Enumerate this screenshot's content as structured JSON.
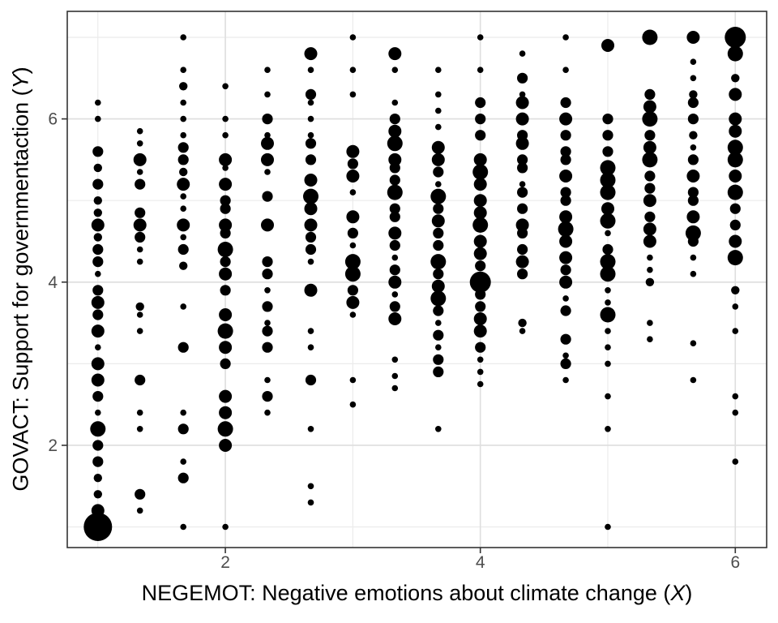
{
  "colors": {
    "background": "#ffffff",
    "point": "#000000",
    "grid_major": "#dedede",
    "grid_minor": "#ebebeb",
    "panel_border": "#333333",
    "tick_label": "#4d4d4d",
    "axis_title": "#000000"
  },
  "axis_titles": {
    "x_text": "NEGEMOT: Negative emotions about climate change (",
    "x_var": "X",
    "x_close": ")",
    "y_text": "GOVACT: Support for governmentaction (",
    "y_var": "Y",
    "y_close": ")"
  },
  "chart_data": {
    "type": "scatter",
    "subtype": "count-bubble",
    "title": "",
    "xlabel": "NEGEMOT: Negative emotions about climate change (X)",
    "ylabel": "GOVACT: Support for governmentaction (Y)",
    "xlim": [
      0.76,
      6.246
    ],
    "ylim": [
      0.747,
      7.318
    ],
    "x_ticks_major": [
      2,
      4,
      6
    ],
    "x_ticks_minor": [
      1,
      3,
      5
    ],
    "y_ticks_major": [
      2,
      4,
      6
    ],
    "y_ticks_minor": [
      1,
      3,
      5,
      7
    ],
    "grid": true,
    "legend": false,
    "size_class_radius_px": [
      3.8,
      5.2,
      6.6,
      8.0,
      9.5,
      13.0,
      17.5
    ],
    "points": [
      [
        1.0,
        6.2,
        1
      ],
      [
        1.0,
        6.0,
        1
      ],
      [
        1.0,
        5.6,
        3
      ],
      [
        1.0,
        5.4,
        2
      ],
      [
        1.0,
        5.2,
        3
      ],
      [
        1.0,
        5.0,
        2
      ],
      [
        1.0,
        4.85,
        2
      ],
      [
        1.0,
        4.7,
        4
      ],
      [
        1.0,
        4.55,
        2
      ],
      [
        1.0,
        4.4,
        3
      ],
      [
        1.0,
        4.25,
        3
      ],
      [
        1.0,
        4.1,
        1
      ],
      [
        1.0,
        3.9,
        3
      ],
      [
        1.0,
        3.75,
        4
      ],
      [
        1.0,
        3.6,
        3
      ],
      [
        1.0,
        3.4,
        4
      ],
      [
        1.0,
        3.2,
        1
      ],
      [
        1.0,
        3.0,
        4
      ],
      [
        1.0,
        2.8,
        4
      ],
      [
        1.0,
        2.6,
        3
      ],
      [
        1.0,
        2.4,
        1
      ],
      [
        1.0,
        2.2,
        5
      ],
      [
        1.0,
        2.0,
        3
      ],
      [
        1.0,
        1.8,
        3
      ],
      [
        1.0,
        1.6,
        2
      ],
      [
        1.0,
        1.4,
        2
      ],
      [
        1.0,
        1.2,
        4
      ],
      [
        1.0,
        1.0,
        7
      ],
      [
        1.33,
        5.85,
        1
      ],
      [
        1.33,
        5.7,
        1
      ],
      [
        1.33,
        5.5,
        4
      ],
      [
        1.33,
        5.35,
        1
      ],
      [
        1.33,
        5.2,
        3
      ],
      [
        1.33,
        4.85,
        3
      ],
      [
        1.33,
        4.7,
        4
      ],
      [
        1.33,
        4.55,
        3
      ],
      [
        1.33,
        4.4,
        1
      ],
      [
        1.33,
        4.25,
        1
      ],
      [
        1.33,
        3.7,
        2
      ],
      [
        1.33,
        3.6,
        1
      ],
      [
        1.33,
        3.4,
        1
      ],
      [
        1.33,
        2.8,
        3
      ],
      [
        1.33,
        2.4,
        1
      ],
      [
        1.33,
        2.2,
        1
      ],
      [
        1.33,
        1.4,
        3
      ],
      [
        1.33,
        1.2,
        1
      ],
      [
        1.67,
        7.0,
        1
      ],
      [
        1.67,
        6.6,
        1
      ],
      [
        1.67,
        6.4,
        2
      ],
      [
        1.67,
        6.2,
        1
      ],
      [
        1.67,
        6.0,
        1
      ],
      [
        1.67,
        5.8,
        1
      ],
      [
        1.67,
        5.65,
        3
      ],
      [
        1.67,
        5.5,
        3
      ],
      [
        1.67,
        5.35,
        2
      ],
      [
        1.67,
        5.2,
        4
      ],
      [
        1.67,
        5.05,
        1
      ],
      [
        1.67,
        4.9,
        1
      ],
      [
        1.67,
        4.7,
        4
      ],
      [
        1.67,
        4.55,
        1
      ],
      [
        1.67,
        4.4,
        3
      ],
      [
        1.67,
        4.2,
        2
      ],
      [
        1.67,
        3.7,
        1
      ],
      [
        1.67,
        3.2,
        3
      ],
      [
        1.67,
        2.4,
        1
      ],
      [
        1.67,
        2.2,
        3
      ],
      [
        1.67,
        1.8,
        1
      ],
      [
        1.67,
        1.6,
        3
      ],
      [
        1.67,
        1.0,
        1
      ],
      [
        2.0,
        6.4,
        1
      ],
      [
        2.0,
        6.0,
        1
      ],
      [
        2.0,
        5.8,
        1
      ],
      [
        2.0,
        5.5,
        4
      ],
      [
        2.0,
        5.4,
        1
      ],
      [
        2.0,
        5.2,
        4
      ],
      [
        2.0,
        5.0,
        3
      ],
      [
        2.0,
        4.9,
        3
      ],
      [
        2.0,
        4.7,
        4
      ],
      [
        2.0,
        4.6,
        3
      ],
      [
        2.0,
        4.4,
        5
      ],
      [
        2.0,
        4.25,
        3
      ],
      [
        2.0,
        4.1,
        4
      ],
      [
        2.0,
        3.9,
        3
      ],
      [
        2.0,
        3.6,
        4
      ],
      [
        2.0,
        3.4,
        5
      ],
      [
        2.0,
        3.2,
        4
      ],
      [
        2.0,
        3.0,
        3
      ],
      [
        2.0,
        2.6,
        4
      ],
      [
        2.0,
        2.4,
        4
      ],
      [
        2.0,
        2.2,
        5
      ],
      [
        2.0,
        2.0,
        4
      ],
      [
        2.0,
        1.0,
        1
      ],
      [
        2.33,
        6.6,
        1
      ],
      [
        2.33,
        6.3,
        1
      ],
      [
        2.33,
        6.0,
        3
      ],
      [
        2.33,
        5.8,
        1
      ],
      [
        2.33,
        5.7,
        4
      ],
      [
        2.33,
        5.5,
        4
      ],
      [
        2.33,
        5.35,
        1
      ],
      [
        2.33,
        5.05,
        3
      ],
      [
        2.33,
        4.7,
        4
      ],
      [
        2.33,
        4.25,
        3
      ],
      [
        2.33,
        4.1,
        3
      ],
      [
        2.33,
        3.9,
        1
      ],
      [
        2.33,
        3.7,
        3
      ],
      [
        2.33,
        3.5,
        1
      ],
      [
        2.33,
        3.4,
        3
      ],
      [
        2.33,
        3.2,
        3
      ],
      [
        2.33,
        2.8,
        1
      ],
      [
        2.33,
        2.6,
        3
      ],
      [
        2.33,
        2.4,
        1
      ],
      [
        2.67,
        6.8,
        4
      ],
      [
        2.67,
        6.6,
        1
      ],
      [
        2.67,
        6.3,
        3
      ],
      [
        2.67,
        6.2,
        1
      ],
      [
        2.67,
        6.0,
        1
      ],
      [
        2.67,
        5.8,
        1
      ],
      [
        2.67,
        5.7,
        3
      ],
      [
        2.67,
        5.5,
        3
      ],
      [
        2.67,
        5.25,
        4
      ],
      [
        2.67,
        5.05,
        5
      ],
      [
        2.67,
        4.9,
        4
      ],
      [
        2.67,
        4.7,
        4
      ],
      [
        2.67,
        4.55,
        3
      ],
      [
        2.67,
        4.4,
        3
      ],
      [
        2.67,
        4.25,
        1
      ],
      [
        2.67,
        3.9,
        4
      ],
      [
        2.67,
        3.4,
        1
      ],
      [
        2.67,
        3.2,
        1
      ],
      [
        2.67,
        2.8,
        3
      ],
      [
        2.67,
        2.2,
        1
      ],
      [
        2.67,
        1.5,
        1
      ],
      [
        2.67,
        1.3,
        1
      ],
      [
        3.0,
        7.0,
        1
      ],
      [
        3.0,
        6.6,
        1
      ],
      [
        3.0,
        6.3,
        1
      ],
      [
        3.0,
        5.6,
        4
      ],
      [
        3.0,
        5.45,
        3
      ],
      [
        3.0,
        5.3,
        4
      ],
      [
        3.0,
        5.1,
        1
      ],
      [
        3.0,
        4.8,
        4
      ],
      [
        3.0,
        4.6,
        3
      ],
      [
        3.0,
        4.45,
        1
      ],
      [
        3.0,
        4.25,
        5
      ],
      [
        3.0,
        4.1,
        5
      ],
      [
        3.0,
        3.9,
        3
      ],
      [
        3.0,
        3.75,
        4
      ],
      [
        3.0,
        3.6,
        1
      ],
      [
        3.0,
        2.8,
        1
      ],
      [
        3.0,
        2.5,
        1
      ],
      [
        3.33,
        6.8,
        4
      ],
      [
        3.33,
        6.6,
        1
      ],
      [
        3.33,
        6.2,
        1
      ],
      [
        3.33,
        6.0,
        3
      ],
      [
        3.33,
        5.85,
        4
      ],
      [
        3.33,
        5.7,
        5
      ],
      [
        3.33,
        5.5,
        4
      ],
      [
        3.33,
        5.4,
        3
      ],
      [
        3.33,
        5.25,
        3
      ],
      [
        3.33,
        5.1,
        5
      ],
      [
        3.33,
        4.9,
        3
      ],
      [
        3.33,
        4.8,
        3
      ],
      [
        3.33,
        4.6,
        4
      ],
      [
        3.33,
        4.45,
        3
      ],
      [
        3.33,
        4.3,
        1
      ],
      [
        3.33,
        4.15,
        3
      ],
      [
        3.33,
        4.0,
        4
      ],
      [
        3.33,
        3.85,
        1
      ],
      [
        3.33,
        3.7,
        3
      ],
      [
        3.33,
        3.55,
        4
      ],
      [
        3.33,
        3.05,
        1
      ],
      [
        3.33,
        2.85,
        1
      ],
      [
        3.33,
        2.7,
        1
      ],
      [
        3.67,
        6.6,
        1
      ],
      [
        3.67,
        6.3,
        1
      ],
      [
        3.67,
        6.1,
        1
      ],
      [
        3.67,
        5.9,
        1
      ],
      [
        3.67,
        5.65,
        4
      ],
      [
        3.67,
        5.5,
        4
      ],
      [
        3.67,
        5.35,
        3
      ],
      [
        3.67,
        5.2,
        1
      ],
      [
        3.67,
        5.05,
        5
      ],
      [
        3.67,
        4.9,
        3
      ],
      [
        3.67,
        4.75,
        4
      ],
      [
        3.67,
        4.6,
        3
      ],
      [
        3.67,
        4.45,
        3
      ],
      [
        3.67,
        4.25,
        5
      ],
      [
        3.67,
        4.1,
        3
      ],
      [
        3.67,
        3.95,
        4
      ],
      [
        3.67,
        3.8,
        5
      ],
      [
        3.67,
        3.65,
        3
      ],
      [
        3.67,
        3.5,
        1
      ],
      [
        3.67,
        3.35,
        3
      ],
      [
        3.67,
        3.2,
        1
      ],
      [
        3.67,
        3.05,
        3
      ],
      [
        3.67,
        2.9,
        3
      ],
      [
        3.67,
        2.2,
        1
      ],
      [
        4.0,
        7.0,
        1
      ],
      [
        4.0,
        6.6,
        1
      ],
      [
        4.0,
        6.2,
        3
      ],
      [
        4.0,
        6.0,
        3
      ],
      [
        4.0,
        5.8,
        3
      ],
      [
        4.0,
        5.5,
        4
      ],
      [
        4.0,
        5.35,
        5
      ],
      [
        4.0,
        5.2,
        4
      ],
      [
        4.0,
        5.0,
        4
      ],
      [
        4.0,
        4.85,
        4
      ],
      [
        4.0,
        4.7,
        5
      ],
      [
        4.0,
        4.5,
        4
      ],
      [
        4.0,
        4.35,
        4
      ],
      [
        4.0,
        4.2,
        3
      ],
      [
        4.0,
        4.0,
        6
      ],
      [
        4.0,
        3.85,
        3
      ],
      [
        4.0,
        3.7,
        3
      ],
      [
        4.0,
        3.55,
        4
      ],
      [
        4.0,
        3.4,
        4
      ],
      [
        4.0,
        3.2,
        3
      ],
      [
        4.0,
        3.05,
        1
      ],
      [
        4.0,
        2.9,
        1
      ],
      [
        4.0,
        2.75,
        1
      ],
      [
        4.33,
        6.8,
        1
      ],
      [
        4.33,
        6.5,
        3
      ],
      [
        4.33,
        6.3,
        1
      ],
      [
        4.33,
        6.2,
        4
      ],
      [
        4.33,
        6.0,
        4
      ],
      [
        4.33,
        5.8,
        3
      ],
      [
        4.33,
        5.7,
        4
      ],
      [
        4.33,
        5.5,
        3
      ],
      [
        4.33,
        5.4,
        3
      ],
      [
        4.33,
        5.2,
        1
      ],
      [
        4.33,
        5.1,
        3
      ],
      [
        4.33,
        4.9,
        3
      ],
      [
        4.33,
        4.7,
        4
      ],
      [
        4.33,
        4.6,
        3
      ],
      [
        4.33,
        4.4,
        3
      ],
      [
        4.33,
        4.25,
        4
      ],
      [
        4.33,
        4.1,
        3
      ],
      [
        4.33,
        3.5,
        2
      ],
      [
        4.33,
        3.4,
        1
      ],
      [
        4.67,
        7.0,
        1
      ],
      [
        4.67,
        6.6,
        1
      ],
      [
        4.67,
        6.2,
        3
      ],
      [
        4.67,
        6.0,
        4
      ],
      [
        4.67,
        5.8,
        3
      ],
      [
        4.67,
        5.6,
        3
      ],
      [
        4.67,
        5.5,
        3
      ],
      [
        4.67,
        5.3,
        4
      ],
      [
        4.67,
        5.1,
        3
      ],
      [
        4.67,
        5.0,
        3
      ],
      [
        4.67,
        4.8,
        4
      ],
      [
        4.67,
        4.65,
        5
      ],
      [
        4.67,
        4.5,
        4
      ],
      [
        4.67,
        4.3,
        4
      ],
      [
        4.67,
        4.15,
        3
      ],
      [
        4.67,
        4.0,
        4
      ],
      [
        4.67,
        3.8,
        1
      ],
      [
        4.67,
        3.65,
        3
      ],
      [
        4.67,
        3.3,
        3
      ],
      [
        4.67,
        3.1,
        1
      ],
      [
        4.67,
        3.0,
        3
      ],
      [
        4.67,
        2.8,
        1
      ],
      [
        5.0,
        6.9,
        4
      ],
      [
        5.0,
        6.0,
        3
      ],
      [
        5.0,
        5.8,
        3
      ],
      [
        5.0,
        5.6,
        3
      ],
      [
        5.0,
        5.4,
        5
      ],
      [
        5.0,
        5.25,
        5
      ],
      [
        5.0,
        5.1,
        5
      ],
      [
        5.0,
        4.9,
        4
      ],
      [
        5.0,
        4.75,
        5
      ],
      [
        5.0,
        4.6,
        1
      ],
      [
        5.0,
        4.4,
        3
      ],
      [
        5.0,
        4.25,
        5
      ],
      [
        5.0,
        4.1,
        5
      ],
      [
        5.0,
        3.9,
        1
      ],
      [
        5.0,
        3.75,
        1
      ],
      [
        5.0,
        3.6,
        5
      ],
      [
        5.0,
        3.4,
        1
      ],
      [
        5.0,
        3.2,
        1
      ],
      [
        5.0,
        3.0,
        1
      ],
      [
        5.0,
        2.6,
        1
      ],
      [
        5.0,
        2.2,
        1
      ],
      [
        5.0,
        1.0,
        1
      ],
      [
        5.33,
        7.0,
        5
      ],
      [
        5.33,
        6.3,
        3
      ],
      [
        5.33,
        6.15,
        4
      ],
      [
        5.33,
        6.0,
        5
      ],
      [
        5.33,
        5.8,
        3
      ],
      [
        5.33,
        5.65,
        4
      ],
      [
        5.33,
        5.5,
        5
      ],
      [
        5.33,
        5.3,
        3
      ],
      [
        5.33,
        5.15,
        3
      ],
      [
        5.33,
        5.0,
        4
      ],
      [
        5.33,
        4.8,
        3
      ],
      [
        5.33,
        4.65,
        4
      ],
      [
        5.33,
        4.5,
        4
      ],
      [
        5.33,
        4.3,
        1
      ],
      [
        5.33,
        4.15,
        1
      ],
      [
        5.33,
        4.0,
        2
      ],
      [
        5.33,
        3.5,
        1
      ],
      [
        5.33,
        3.3,
        1
      ],
      [
        5.67,
        7.0,
        4
      ],
      [
        5.67,
        6.7,
        1
      ],
      [
        5.67,
        6.5,
        1
      ],
      [
        5.67,
        6.3,
        2
      ],
      [
        5.67,
        6.2,
        3
      ],
      [
        5.67,
        6.0,
        3
      ],
      [
        5.67,
        5.8,
        2
      ],
      [
        5.67,
        5.65,
        1
      ],
      [
        5.67,
        5.5,
        3
      ],
      [
        5.67,
        5.3,
        4
      ],
      [
        5.67,
        5.1,
        3
      ],
      [
        5.67,
        5.0,
        3
      ],
      [
        5.67,
        4.8,
        4
      ],
      [
        5.67,
        4.6,
        5
      ],
      [
        5.67,
        4.5,
        3
      ],
      [
        5.67,
        4.3,
        1
      ],
      [
        5.67,
        4.1,
        1
      ],
      [
        5.67,
        3.25,
        1
      ],
      [
        5.67,
        2.8,
        1
      ],
      [
        6.0,
        7.0,
        6
      ],
      [
        6.0,
        6.8,
        5
      ],
      [
        6.0,
        6.5,
        2
      ],
      [
        6.0,
        6.3,
        4
      ],
      [
        6.0,
        6.0,
        4
      ],
      [
        6.0,
        5.85,
        4
      ],
      [
        6.0,
        5.65,
        5
      ],
      [
        6.0,
        5.5,
        5
      ],
      [
        6.0,
        5.3,
        4
      ],
      [
        6.0,
        5.1,
        5
      ],
      [
        6.0,
        4.9,
        3
      ],
      [
        6.0,
        4.7,
        3
      ],
      [
        6.0,
        4.5,
        4
      ],
      [
        6.0,
        4.3,
        5
      ],
      [
        6.0,
        3.9,
        2
      ],
      [
        6.0,
        3.7,
        1
      ],
      [
        6.0,
        3.4,
        1
      ],
      [
        6.0,
        2.6,
        1
      ],
      [
        6.0,
        2.4,
        1
      ],
      [
        6.0,
        1.8,
        1
      ]
    ]
  }
}
